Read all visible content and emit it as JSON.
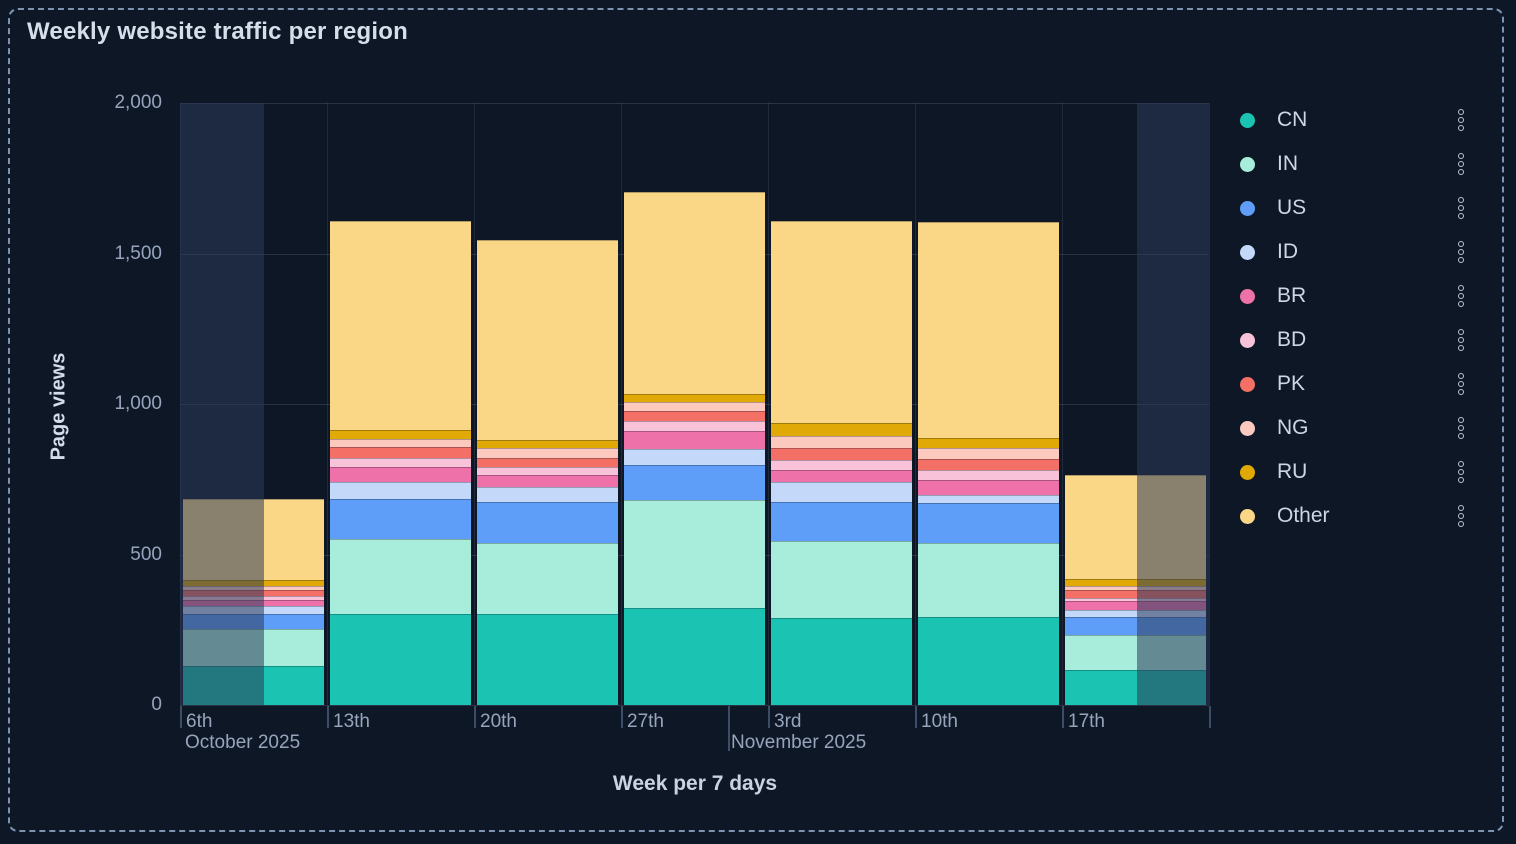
{
  "title": "Weekly website traffic per region",
  "y_axis": {
    "label": "Page views",
    "tick_labels": [
      "0",
      "500",
      "1,000",
      "1,500",
      "2,000"
    ],
    "tick_values": [
      0,
      500,
      1000,
      1500,
      2000
    ]
  },
  "x_axis": {
    "label": "Week per 7 days",
    "week_labels": [
      "6th",
      "13th",
      "20th",
      "27th",
      "3rd",
      "10th",
      "17th"
    ],
    "month_labels": [
      {
        "text": "October 2025",
        "anchor_week_index": 0
      },
      {
        "text": "November 2025",
        "anchor_week_index": 4
      }
    ]
  },
  "chart_data": {
    "type": "bar",
    "stacked": true,
    "title": "Weekly website traffic per region",
    "xlabel": "Week per 7 days",
    "ylabel": "Page views",
    "ylim": [
      0,
      2000
    ],
    "grid": true,
    "legend_position": "right",
    "categories": [
      "6th",
      "13th",
      "20th",
      "27th",
      "3rd",
      "10th",
      "17th"
    ],
    "category_month_sublabels": {
      "0": "October 2025",
      "4": "November 2025"
    },
    "series": [
      {
        "name": "CN",
        "color": "#1ac3b2",
        "values": [
          130,
          302,
          302,
          322,
          289,
          292,
          116
        ]
      },
      {
        "name": "IN",
        "color": "#a8ecdb",
        "values": [
          122,
          249,
          235,
          359,
          256,
          247,
          116
        ]
      },
      {
        "name": "US",
        "color": "#5f9ef8",
        "values": [
          52,
          135,
          139,
          116,
          130,
          132,
          61
        ]
      },
      {
        "name": "ID",
        "color": "#c4d8fa",
        "values": [
          26,
          55,
          48,
          52,
          66,
          27,
          22
        ]
      },
      {
        "name": "BR",
        "color": "#ee71aa",
        "values": [
          19,
          50,
          39,
          60,
          40,
          50,
          30
        ]
      },
      {
        "name": "BD",
        "color": "#f8c3d8",
        "values": [
          14,
          31,
          28,
          35,
          33,
          33,
          12
        ]
      },
      {
        "name": "PK",
        "color": "#f47066",
        "values": [
          19,
          35,
          31,
          33,
          40,
          37,
          24
        ]
      },
      {
        "name": "NG",
        "color": "#fbc9be",
        "values": [
          13,
          28,
          33,
          31,
          40,
          36,
          14
        ]
      },
      {
        "name": "RU",
        "color": "#e0a906",
        "values": [
          20,
          28,
          24,
          25,
          43,
          33,
          25
        ]
      },
      {
        "name": "Other",
        "color": "#fad687",
        "values": [
          270,
          695,
          667,
          672,
          670,
          718,
          345
        ]
      }
    ],
    "stack_totals": [
      685,
      1608,
      1546,
      1705,
      1607,
      1605,
      765
    ],
    "dimmed_partial_weeks": {
      "first_week_dimmed_left_fraction": 0.57,
      "last_week_dimmed_right_fraction": 0.49
    }
  },
  "legend_menu_icon": "kebab-vertical"
}
